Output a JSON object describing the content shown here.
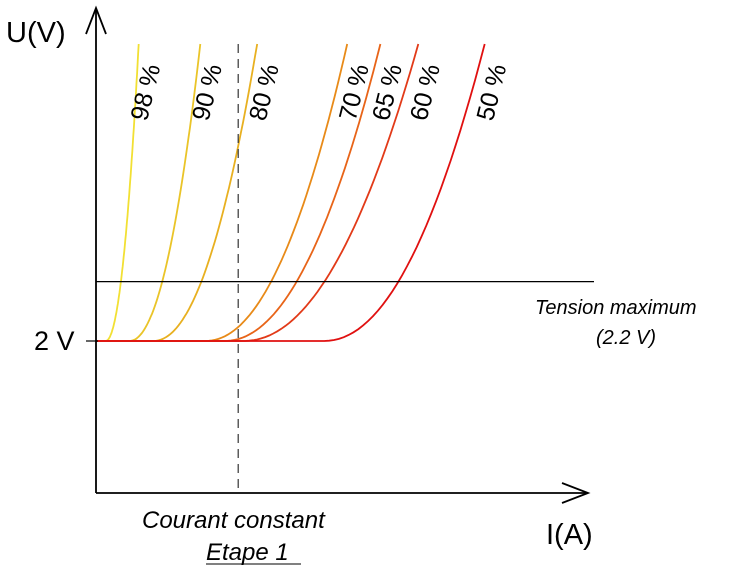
{
  "chart_data": {
    "type": "line",
    "title": "",
    "xlabel": "I(A)",
    "ylabel": "U(V)",
    "y_tick_label": "2 V",
    "xlim": [
      0,
      1
    ],
    "ylim": [
      0,
      3
    ],
    "base_voltage": 2.0,
    "max_voltage": 2.2,
    "constant_current": 0.3,
    "series": [
      {
        "name": "98 %",
        "label": "98 %",
        "color": "#f2e033",
        "knee": 0.02,
        "width": 0.07
      },
      {
        "name": "90 %",
        "label": "90 %",
        "color": "#eac428",
        "knee": 0.07,
        "width": 0.15
      },
      {
        "name": "80 %",
        "label": "80 %",
        "color": "#e8b020",
        "knee": 0.12,
        "width": 0.22
      },
      {
        "name": "70 %",
        "label": "70 %",
        "color": "#e88a18",
        "knee": 0.23,
        "width": 0.3
      },
      {
        "name": "65 %",
        "label": "65 %",
        "color": "#e86418",
        "knee": 0.27,
        "width": 0.33
      },
      {
        "name": "60 %",
        "label": "60 %",
        "color": "#e23a18",
        "knee": 0.31,
        "width": 0.37
      },
      {
        "name": "50 %",
        "label": "50 %",
        "color": "#e01010",
        "knee": 0.48,
        "width": 0.34
      }
    ],
    "annotations": {
      "max_line_label": "Tension maximum",
      "max_line_value": "(2.2 V)",
      "constant_label": "Courant constant",
      "stage_label": "Etape 1"
    }
  }
}
